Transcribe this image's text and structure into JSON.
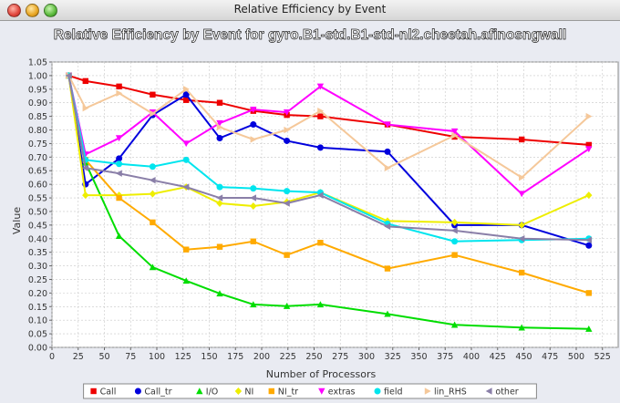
{
  "window": {
    "title": "Relative Efficiency by Event"
  },
  "chart_data": {
    "type": "line",
    "title": "Relative Efficiency by Event for gyro.B1-std.B1-std-nl2.cheetah.afinosngwall",
    "xlabel": "Number of Processors",
    "ylabel": "Value",
    "xlim": [
      0,
      540
    ],
    "ylim": [
      0,
      1.05
    ],
    "xticks": [
      "0",
      "25",
      "50",
      "75",
      "100",
      "125",
      "150",
      "175",
      "200",
      "225",
      "250",
      "275",
      "300",
      "325",
      "350",
      "375",
      "400",
      "425",
      "450",
      "475",
      "500",
      "525"
    ],
    "yticks": [
      "0.00",
      "0.05",
      "0.10",
      "0.15",
      "0.20",
      "0.25",
      "0.30",
      "0.35",
      "0.40",
      "0.45",
      "0.50",
      "0.55",
      "0.60",
      "0.65",
      "0.70",
      "0.75",
      "0.80",
      "0.85",
      "0.90",
      "0.95",
      "1.00",
      "1.05"
    ],
    "grid": true,
    "legend": "bottom",
    "x": [
      16,
      32,
      64,
      96,
      128,
      160,
      192,
      224,
      256,
      320,
      384,
      448,
      512
    ],
    "series": [
      {
        "name": "Call",
        "color": "#ee0000",
        "marker": "square",
        "values": [
          1.0,
          0.98,
          0.96,
          0.93,
          0.91,
          0.9,
          0.87,
          0.855,
          0.85,
          0.82,
          0.775,
          0.765,
          0.745
        ]
      },
      {
        "name": "Call_tr",
        "color": "#0000dd",
        "marker": "circle",
        "values": [
          1.0,
          0.6,
          0.695,
          0.855,
          0.93,
          0.77,
          0.82,
          0.76,
          0.735,
          0.72,
          0.45,
          0.45,
          0.375
        ]
      },
      {
        "name": "I/O",
        "color": "#00dd00",
        "marker": "triangle-up",
        "values": [
          1.0,
          0.68,
          0.41,
          0.295,
          0.245,
          0.198,
          0.158,
          0.152,
          0.158,
          0.123,
          0.083,
          0.073,
          0.068
        ]
      },
      {
        "name": "NI",
        "color": "#eeee00",
        "marker": "diamond",
        "values": [
          1.0,
          0.56,
          0.56,
          0.565,
          0.59,
          0.53,
          0.52,
          0.535,
          0.57,
          0.465,
          0.46,
          0.45,
          0.56
        ]
      },
      {
        "name": "NI_tr",
        "color": "#ffaa00",
        "marker": "square",
        "values": [
          1.0,
          0.69,
          0.55,
          0.46,
          0.36,
          0.37,
          0.39,
          0.34,
          0.385,
          0.29,
          0.34,
          0.275,
          0.2
        ]
      },
      {
        "name": "extras",
        "color": "#ff00ff",
        "marker": "triangle-down",
        "values": [
          1.0,
          0.71,
          0.77,
          0.865,
          0.75,
          0.825,
          0.875,
          0.865,
          0.96,
          0.82,
          0.795,
          0.565,
          0.73
        ]
      },
      {
        "name": "field",
        "color": "#00e5ee",
        "marker": "circle",
        "values": [
          1.0,
          0.69,
          0.675,
          0.665,
          0.69,
          0.59,
          0.585,
          0.575,
          0.57,
          0.455,
          0.39,
          0.395,
          0.4
        ]
      },
      {
        "name": "lin_RHS",
        "color": "#f5c89a",
        "marker": "triangle-right",
        "values": [
          1.0,
          0.88,
          0.935,
          0.86,
          0.95,
          0.81,
          0.765,
          0.8,
          0.87,
          0.66,
          0.78,
          0.625,
          0.85
        ]
      },
      {
        "name": "other",
        "color": "#8a7fa8",
        "marker": "triangle-left",
        "values": [
          1.0,
          0.66,
          0.64,
          0.615,
          0.59,
          0.55,
          0.55,
          0.53,
          0.56,
          0.445,
          0.43,
          0.4,
          0.395
        ]
      }
    ]
  }
}
